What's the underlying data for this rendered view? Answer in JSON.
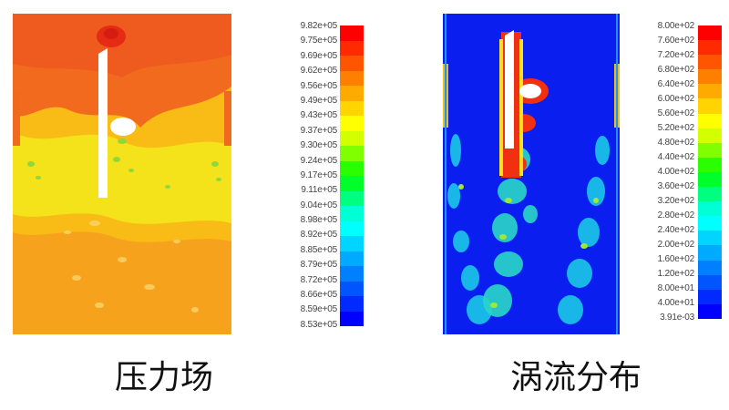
{
  "pressure_panel": {
    "caption": "压力场",
    "legend_labels": [
      "9.82e+05",
      "9.75e+05",
      "9.69e+05",
      "9.62e+05",
      "9.56e+05",
      "9.49e+05",
      "9.43e+05",
      "9.37e+05",
      "9.30e+05",
      "9.24e+05",
      "9.17e+05",
      "9.11e+05",
      "9.04e+05",
      "8.98e+05",
      "8.92e+05",
      "8.85e+05",
      "8.79e+05",
      "8.72e+05",
      "8.66e+05",
      "8.59e+05",
      "8.53e+05"
    ]
  },
  "vorticity_panel": {
    "caption": "涡流分布",
    "legend_labels": [
      "8.00e+02",
      "7.60e+02",
      "7.20e+02",
      "6.80e+02",
      "6.40e+02",
      "6.00e+02",
      "5.60e+02",
      "5.20e+02",
      "4.80e+02",
      "4.40e+02",
      "4.00e+02",
      "3.60e+02",
      "3.20e+02",
      "2.80e+02",
      "2.40e+02",
      "2.00e+02",
      "1.60e+02",
      "1.20e+02",
      "8.00e+01",
      "4.00e+01",
      "3.91e-03"
    ]
  },
  "legend_colors": [
    "#ff0000",
    "#ff2a00",
    "#ff5500",
    "#ff8000",
    "#ffaa00",
    "#ffd400",
    "#ffff00",
    "#d4ff00",
    "#80ff00",
    "#2aff00",
    "#00ff2a",
    "#00ff80",
    "#00ffd4",
    "#00ffff",
    "#00d4ff",
    "#00aaff",
    "#0080ff",
    "#0055ff",
    "#002aff",
    "#0000ff"
  ]
}
